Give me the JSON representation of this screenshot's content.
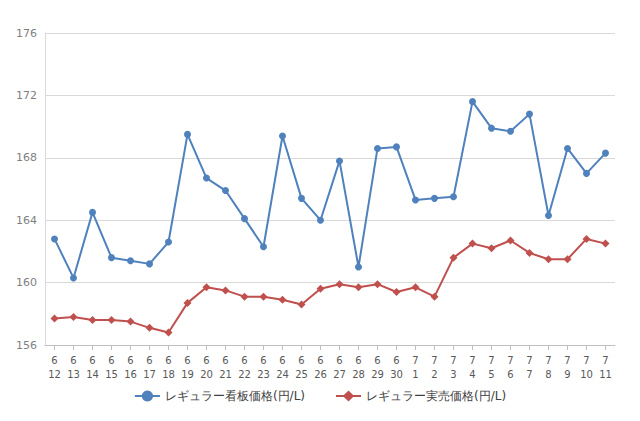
{
  "chart_data": {
    "type": "line",
    "categories": [
      "6\n12",
      "6\n13",
      "6\n14",
      "6\n15",
      "6\n16",
      "6\n17",
      "6\n18",
      "6\n19",
      "6\n20",
      "6\n21",
      "6\n22",
      "6\n23",
      "6\n24",
      "6\n25",
      "6\n26",
      "6\n27",
      "6\n28",
      "6\n29",
      "6\n30",
      "7\n1",
      "7\n2",
      "7\n3",
      "7\n4",
      "7\n5",
      "7\n6",
      "7\n7",
      "7\n8",
      "7\n9",
      "7\n10",
      "7\n11"
    ],
    "series": [
      {
        "name": "レギュラー看板価格(円/L)",
        "color": "#4f81bd",
        "marker": "circle",
        "line_style": "solid",
        "values": [
          162.8,
          160.3,
          164.5,
          161.6,
          161.4,
          161.2,
          162.6,
          169.5,
          166.7,
          165.9,
          164.1,
          162.3,
          169.4,
          165.4,
          164.0,
          167.8,
          161.0,
          168.6,
          168.7,
          165.3,
          165.4,
          165.5,
          171.6,
          169.9,
          169.7,
          170.8,
          164.3,
          168.6,
          167.0,
          168.3
        ]
      },
      {
        "name": "レギュラー実売価格(円/L)",
        "color": "#c0504d",
        "marker": "diamond",
        "line_style": "solid",
        "values": [
          157.7,
          157.8,
          157.6,
          157.6,
          157.5,
          157.1,
          156.8,
          158.7,
          159.7,
          159.5,
          159.1,
          159.1,
          158.9,
          158.6,
          159.6,
          159.9,
          159.7,
          159.9,
          159.4,
          159.7,
          159.1,
          161.6,
          162.5,
          162.2,
          162.7,
          161.9,
          161.5,
          161.5,
          162.8,
          162.5
        ]
      }
    ],
    "ylim": [
      156,
      176
    ],
    "yticks": [
      156,
      160,
      164,
      168,
      172,
      176
    ],
    "grid": true,
    "legend": "bottom"
  }
}
